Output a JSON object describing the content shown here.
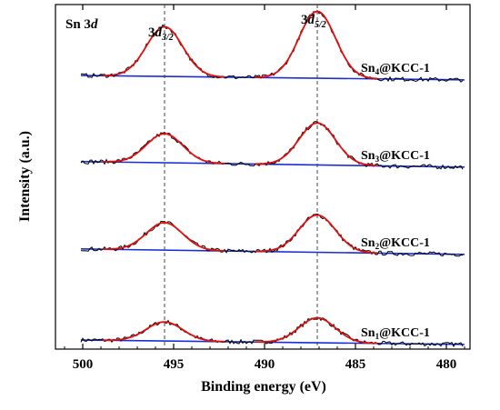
{
  "chart_data": {
    "type": "line",
    "title": "",
    "panel_label": {
      "main": "Sn 3",
      "italic": "d"
    },
    "xlabel": "Binding energy (eV)",
    "ylabel": "Intensity (a.u.)",
    "xlim": [
      501.5,
      478.7
    ],
    "x_reversed": true,
    "x_ticks": [
      500,
      495,
      490,
      485,
      480
    ],
    "y_ticks_shown": false,
    "peak_positions_eV": [
      495.5,
      487.1
    ],
    "peak_labels": [
      {
        "base": "3",
        "italic": "d",
        "sub": "3/2",
        "x": 495.5
      },
      {
        "base": "3",
        "italic": "d",
        "sub": "5/2",
        "x": 487.1
      }
    ],
    "reference_lines_eV": [
      495.5,
      487.1
    ],
    "series": [
      {
        "name": "Sn1@KCC-1",
        "label_base": "Sn",
        "label_sub": "1",
        "label_rest": "@KCC-1",
        "baseline_left": 0.06,
        "baseline_right": 0.01,
        "peaks": [
          {
            "center": 495.5,
            "height": 0.2,
            "width": 1.0
          },
          {
            "center": 487.1,
            "height": 0.26,
            "width": 1.0
          }
        ]
      },
      {
        "name": "Sn2@KCC-1",
        "label_base": "Sn",
        "label_sub": "2",
        "label_rest": "@KCC-1",
        "baseline_left": 0.07,
        "baseline_right": 0.01,
        "peaks": [
          {
            "center": 495.5,
            "height": 0.28,
            "width": 1.0
          },
          {
            "center": 487.1,
            "height": 0.38,
            "width": 1.0
          }
        ]
      },
      {
        "name": "Sn3@KCC-1",
        "label_base": "Sn",
        "label_sub": "3",
        "label_rest": "@KCC-1",
        "baseline_left": 0.07,
        "baseline_right": 0.01,
        "peaks": [
          {
            "center": 495.5,
            "height": 0.29,
            "width": 1.0
          },
          {
            "center": 487.1,
            "height": 0.42,
            "width": 1.0
          }
        ]
      },
      {
        "name": "Sn4@KCC-1",
        "label_base": "Sn",
        "label_sub": "4",
        "label_rest": "@KCC-1",
        "baseline_left": 0.06,
        "baseline_right": 0.01,
        "peaks": [
          {
            "center": 495.5,
            "height": 0.52,
            "width": 1.0
          },
          {
            "center": 487.1,
            "height": 0.7,
            "width": 1.0
          }
        ]
      }
    ],
    "colors": {
      "raw": "#000000",
      "fit": "#e01010",
      "baseline": "#1a2fd0",
      "frame": "#000000",
      "guide": "#444444"
    },
    "grid": false,
    "legend": "inline labels at right of each spectrum"
  }
}
